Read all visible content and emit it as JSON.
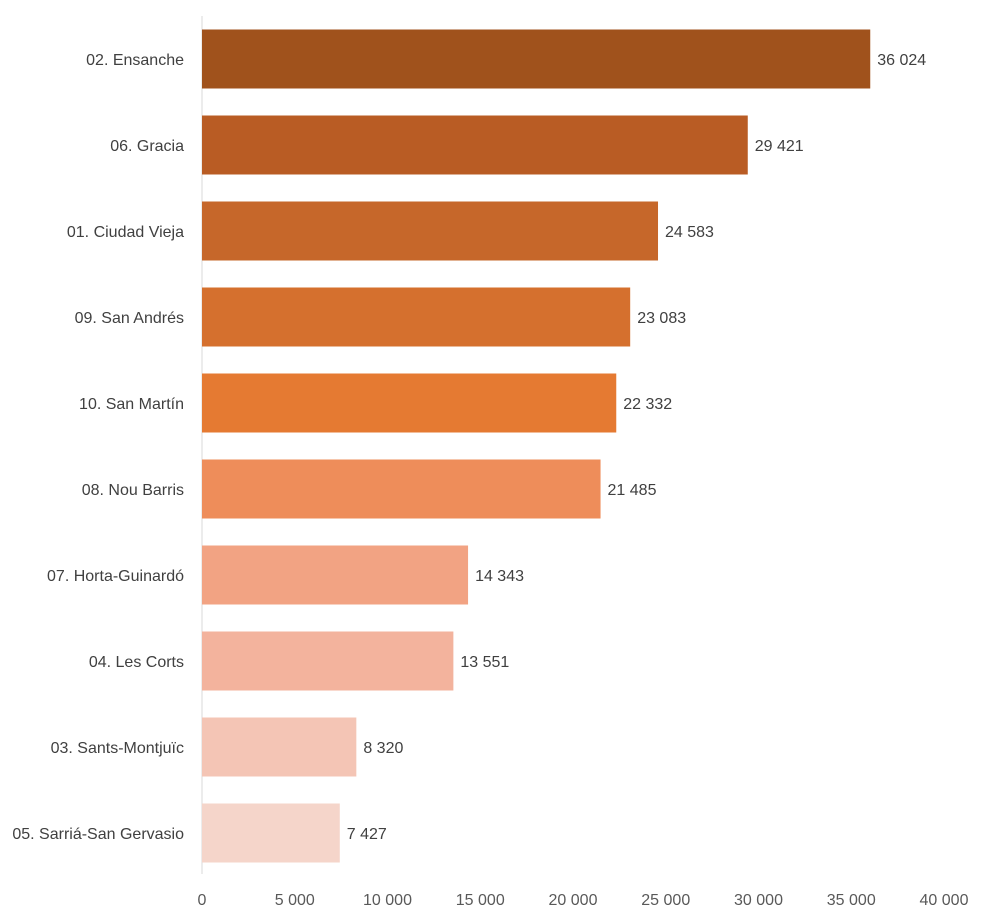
{
  "chart_data": {
    "type": "bar",
    "orientation": "horizontal",
    "title": "",
    "xlabel": "",
    "ylabel": "",
    "categories": [
      "02. Ensanche",
      "06. Gracia",
      "01. Ciudad Vieja",
      "09. San Andrés",
      "10. San Martín",
      "08. Nou Barris",
      "07. Horta-Guinardó",
      "04. Les Corts",
      "03. Sants-Montjuïc",
      "05. Sarriá-San Gervasio"
    ],
    "values": [
      36024,
      29421,
      24583,
      23083,
      22332,
      21485,
      14343,
      13551,
      8320,
      7427
    ],
    "value_labels": [
      "36 024",
      "29 421",
      "24 583",
      "23 083",
      "22 332",
      "21 485",
      "14 343",
      "13 551",
      "8 320",
      "7 427"
    ],
    "xlim": [
      0,
      40000
    ],
    "x_ticks": [
      0,
      5000,
      10000,
      15000,
      20000,
      25000,
      30000,
      35000,
      40000
    ],
    "x_tick_labels": [
      "0",
      "5 000",
      "10 000",
      "15 000",
      "20 000",
      "25 000",
      "30 000",
      "35 000",
      "40 000"
    ],
    "grid": false,
    "legend": "none",
    "bar_colors": [
      "#a0521c",
      "#b95c24",
      "#c6672a",
      "#d5702e",
      "#e57a32",
      "#ee8d5a",
      "#f2a383",
      "#f3b39d",
      "#f4c5b5",
      "#f5d5ca"
    ],
    "axis_color": "#d9d9d9"
  }
}
